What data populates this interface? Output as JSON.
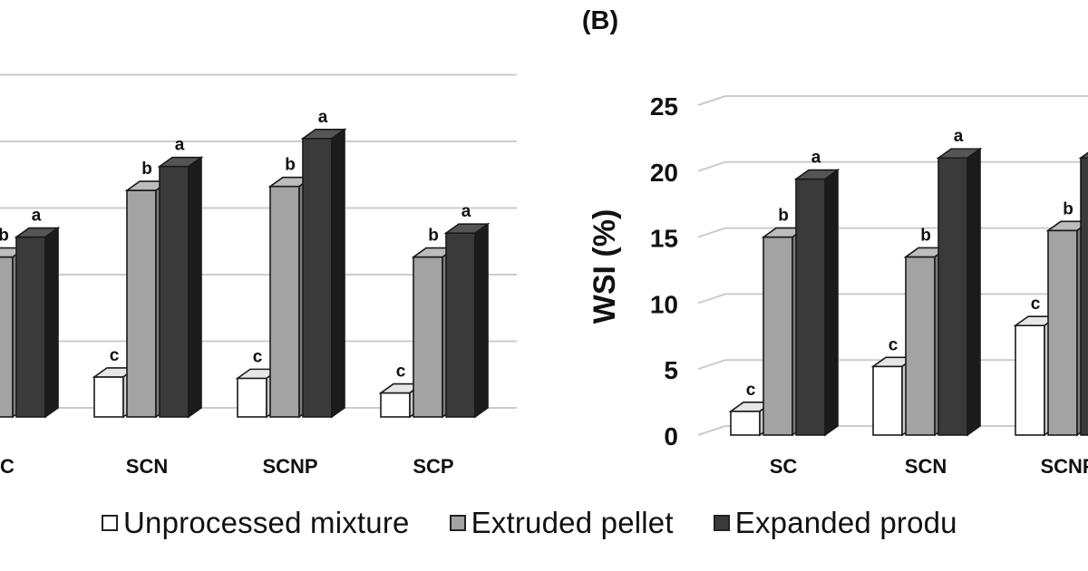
{
  "panel_label": "(B)",
  "chart_data": [
    {
      "type": "bar",
      "title": "",
      "xlabel": "",
      "ylabel": "",
      "categories": [
        "SC",
        "SCN",
        "SCNP",
        "SCP"
      ],
      "category_labels_visible": [
        "C",
        "SCN",
        "SCNP",
        "SCP"
      ],
      "ylim": [
        0,
        25
      ],
      "gridlines": [
        5,
        10,
        15,
        20,
        25
      ],
      "series": [
        {
          "name": "Unprocessed mixture",
          "values": [
            null,
            3.0,
            2.9,
            1.8
          ],
          "labels": [
            "",
            "c",
            "c",
            "c"
          ]
        },
        {
          "name": "Extruded pellet",
          "values": [
            12.0,
            17.0,
            17.3,
            12.0
          ],
          "labels": [
            "b",
            "b",
            "b",
            "b"
          ]
        },
        {
          "name": "Expanded product",
          "values": [
            13.5,
            18.8,
            20.9,
            13.8
          ],
          "labels": [
            "a",
            "a",
            "a",
            "a"
          ]
        }
      ]
    },
    {
      "type": "bar",
      "title": "(B)",
      "xlabel": "",
      "ylabel": "WSI (%)",
      "categories": [
        "SC",
        "SCN",
        "SCNP"
      ],
      "ylim": [
        0,
        25
      ],
      "yticks": [
        "0",
        "5",
        "10",
        "15",
        "20",
        "25"
      ],
      "series": [
        {
          "name": "Unprocessed mixture",
          "values": [
            1.8,
            5.2,
            8.3
          ],
          "labels": [
            "c",
            "c",
            "c"
          ]
        },
        {
          "name": "Extruded pellet",
          "values": [
            15.0,
            13.5,
            15.5
          ],
          "labels": [
            "b",
            "b",
            "b"
          ]
        },
        {
          "name": "Expanded product",
          "values": [
            19.4,
            21.0,
            21.0
          ],
          "labels": [
            "a",
            "a",
            ""
          ]
        }
      ]
    }
  ],
  "legend": {
    "items": [
      {
        "label": "Unprocessed mixture",
        "color": "#ffffff"
      },
      {
        "label": "Extruded pellet",
        "color": "#a3a3a3"
      },
      {
        "label": "Expanded produ",
        "color": "#3a3a3a"
      }
    ]
  },
  "colors": {
    "front": [
      "#ffffff",
      "#a3a3a3",
      "#3a3a3a"
    ],
    "top": [
      "#e6e6e6",
      "#bdbdbd",
      "#555555"
    ],
    "side": [
      "#cfcfcf",
      "#7c7c7c",
      "#1b1b1b"
    ],
    "grid": "#cccccc",
    "text": "#111111"
  }
}
